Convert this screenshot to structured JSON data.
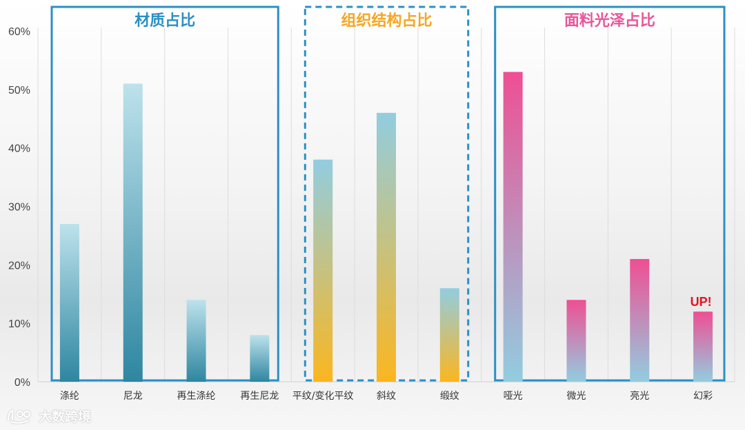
{
  "chart_data": {
    "type": "bar",
    "ylim": [
      0,
      60
    ],
    "yticks": [
      0,
      10,
      20,
      30,
      40,
      50,
      60
    ],
    "ytick_labels": [
      "0%",
      "10%",
      "20%",
      "30%",
      "40%",
      "50%",
      "60%"
    ],
    "groups": [
      {
        "title": "材质占比",
        "color": "#2b8fc4",
        "frame_style": "solid",
        "categories": [
          "涤纶",
          "尼龙",
          "再生涤纶",
          "再生尼龙"
        ],
        "values": [
          27,
          51,
          14,
          8
        ],
        "bar_top_color": "#bde2ec",
        "bar_bottom_color": "#2e86a0"
      },
      {
        "title": "组织结构占比",
        "color": "#f5a623",
        "frame_style": "dashed",
        "frame_color": "#2b8fc4",
        "categories": [
          "平纹/变化平纹",
          "斜纹",
          "缎纹"
        ],
        "values": [
          38,
          46,
          16
        ],
        "bar_top_color": "#92cde0",
        "bar_bottom_color": "#fbb61f"
      },
      {
        "title": "面料光泽占比",
        "color": "#e8559a",
        "frame_style": "solid",
        "frame_color": "#2b8fc4",
        "categories": [
          "哑光",
          "微光",
          "亮光",
          "幻彩"
        ],
        "values": [
          53,
          14,
          21,
          12
        ],
        "bar_top_color": "#ee4f93",
        "bar_bottom_color": "#92cde0"
      }
    ],
    "annotation": {
      "text": "UP!",
      "category": "幻彩",
      "color": "#e8121f"
    },
    "grid": "vertical"
  },
  "watermark": {
    "text": "大数跨境"
  }
}
